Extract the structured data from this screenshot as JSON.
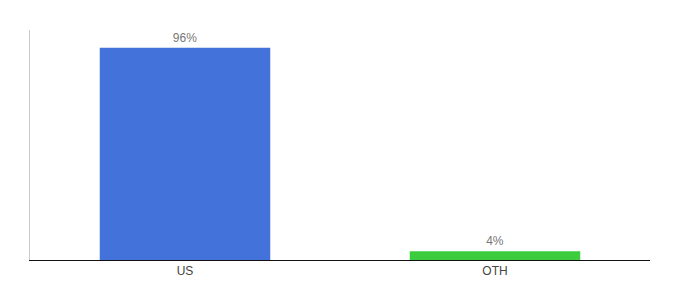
{
  "chart_data": {
    "type": "bar",
    "categories": [
      "US",
      "OTH"
    ],
    "values": [
      96,
      4
    ],
    "value_labels": [
      "96%",
      "4%"
    ],
    "colors": [
      "#4472db",
      "#3dcc3d"
    ],
    "ylim": [
      0,
      104
    ],
    "grid": false,
    "data_labels": true,
    "tick_labels": "x"
  }
}
